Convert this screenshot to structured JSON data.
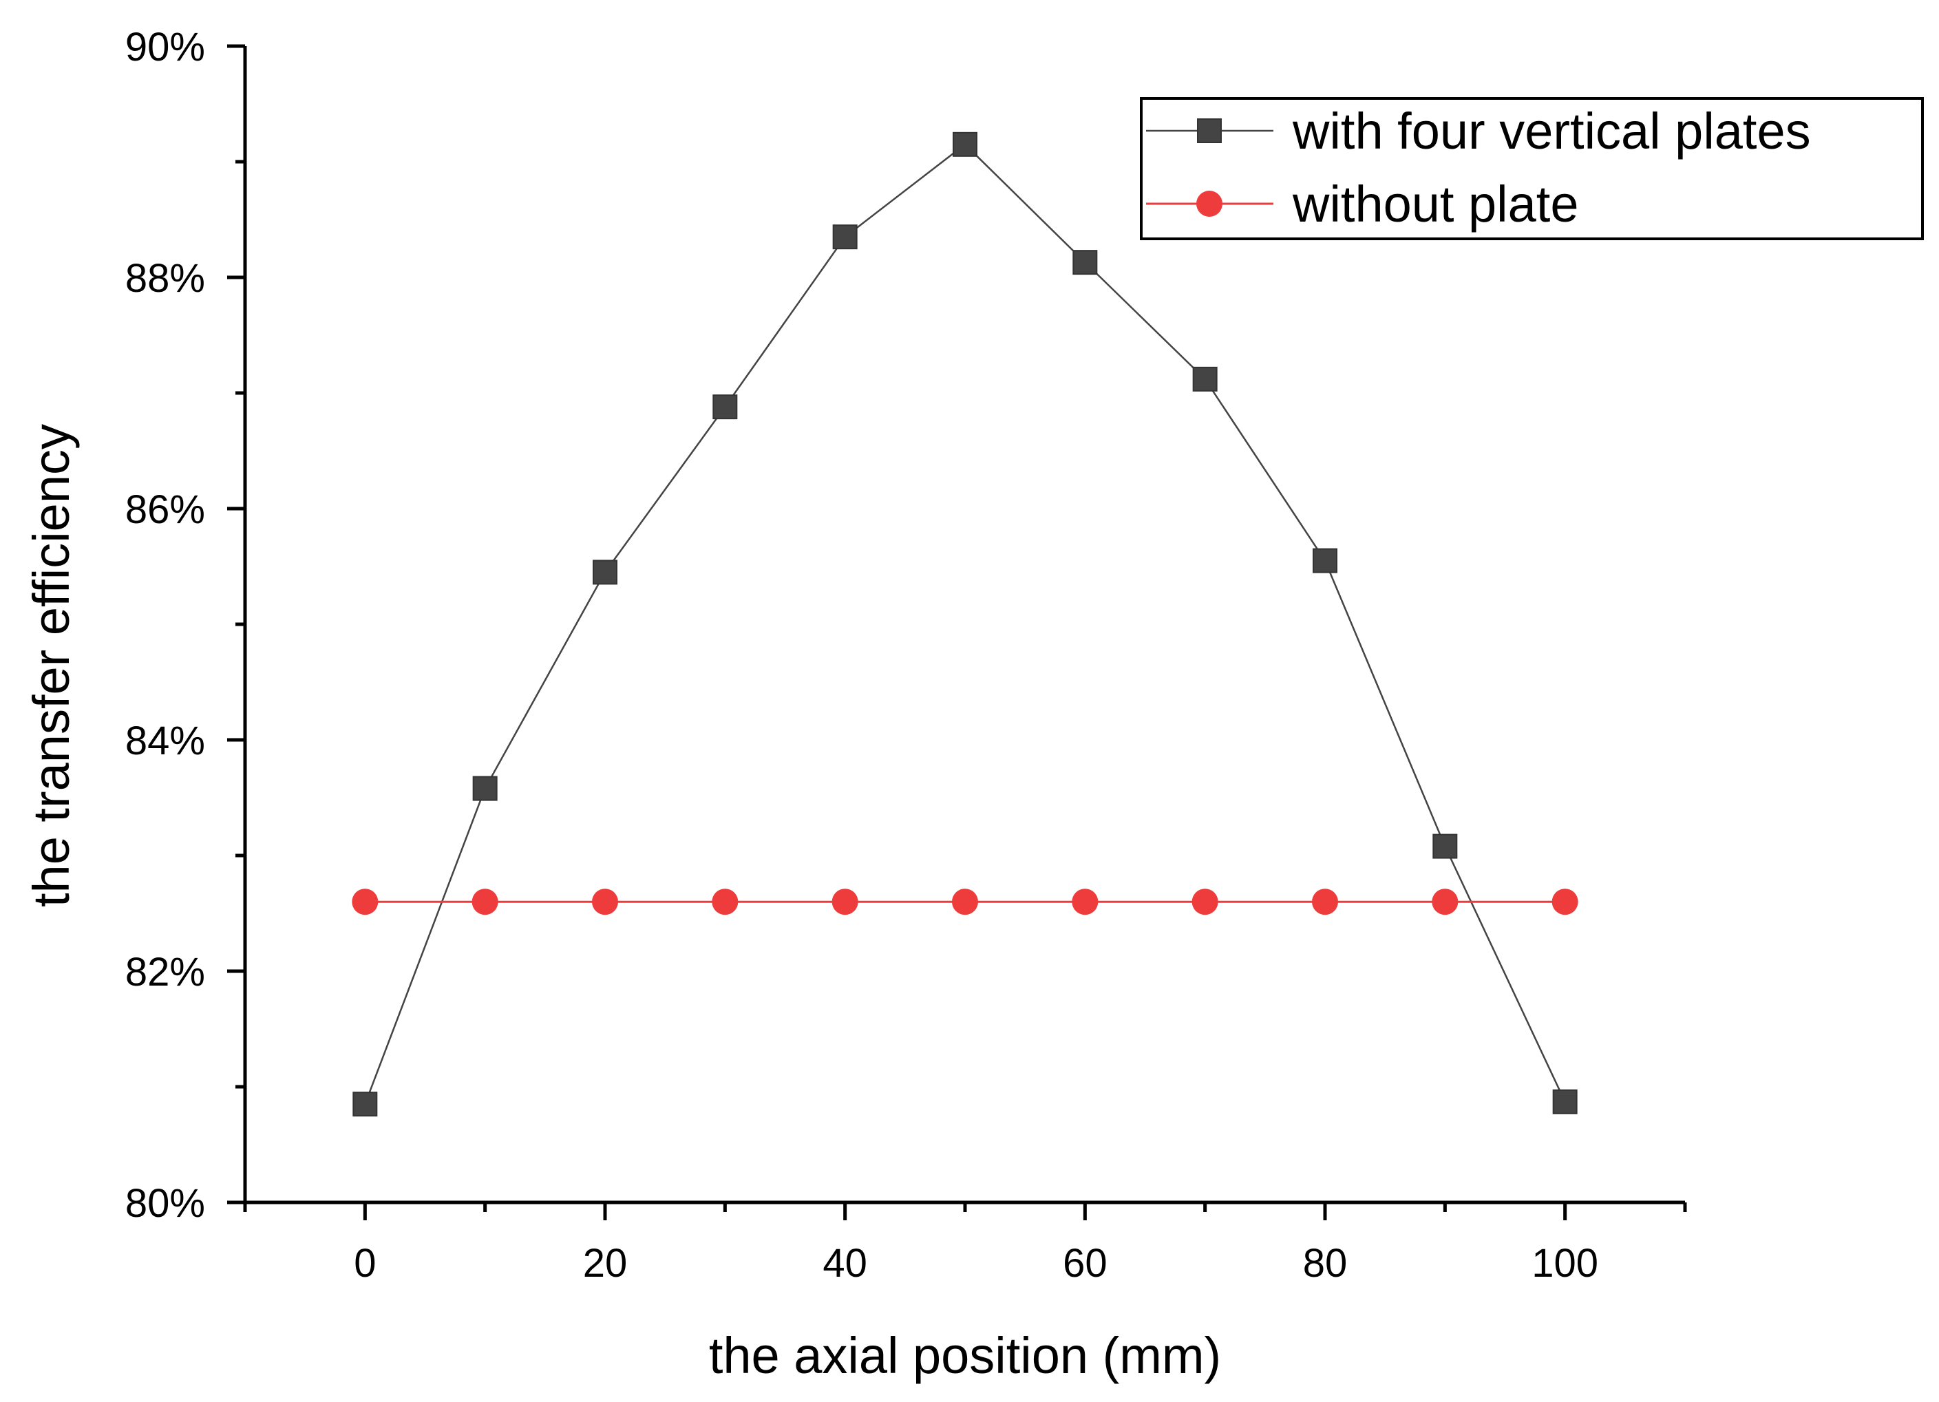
{
  "chart_data": {
    "type": "line",
    "title": "",
    "xlabel": "the axial position (mm)",
    "ylabel": "the transfer efficiency",
    "xlim": [
      -10,
      110
    ],
    "ylim": [
      0.8,
      0.9
    ],
    "x_ticks": [
      0,
      20,
      40,
      60,
      80,
      100
    ],
    "x_tick_labels": [
      "0",
      "20",
      "40",
      "60",
      "80",
      "100"
    ],
    "y_ticks": [
      0.8,
      0.82,
      0.84,
      0.86,
      0.88,
      0.9
    ],
    "y_tick_labels": [
      "80%",
      "82%",
      "84%",
      "86%",
      "88%",
      "90%"
    ],
    "grid": false,
    "legend_position": "top-right",
    "x": [
      0,
      10,
      20,
      30,
      40,
      50,
      60,
      70,
      80,
      90,
      100
    ],
    "series": [
      {
        "name": "with four vertical plates",
        "marker": "square",
        "color": "#444444",
        "values": [
          0.8085,
          0.8358,
          0.8545,
          0.8688,
          0.8835,
          0.8915,
          0.8813,
          0.8712,
          0.8555,
          0.8308,
          0.8087
        ]
      },
      {
        "name": "without plate",
        "marker": "circle",
        "color": "#ee3b3b",
        "values": [
          0.826,
          0.826,
          0.826,
          0.826,
          0.826,
          0.826,
          0.826,
          0.826,
          0.826,
          0.826,
          0.826
        ]
      }
    ]
  }
}
